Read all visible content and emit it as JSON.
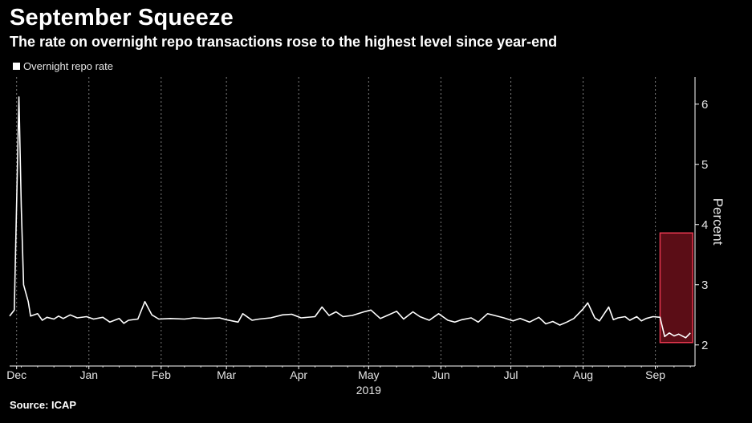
{
  "header": {
    "title": "September Squeeze",
    "subtitle": "The rate on overnight repo transactions rose to the highest level since year-end"
  },
  "source": "Source: ICAP",
  "colors": {
    "background": "#000000",
    "line": "#ffffff",
    "highlight_fill": "#6b0f1a",
    "highlight_stroke": "#e8384f",
    "grid": "#7a7a7a"
  },
  "chart_data": {
    "type": "line",
    "title": "September Squeeze",
    "subtitle": "The rate on overnight repo transactions rose to the highest level since year-end",
    "ylabel": "Percent",
    "year_label": "2019",
    "x_range": [
      "2018-11-28",
      "2019-09-18"
    ],
    "ylim": [
      1.65,
      6.45
    ],
    "y_ticks": [
      2,
      3,
      4,
      5,
      6
    ],
    "y_axis_side": "right",
    "grid": "vertical dashed at month starts",
    "legend_position": "top-left",
    "months": [
      {
        "label": "Dec",
        "date": "2018-12-01"
      },
      {
        "label": "Jan",
        "date": "2019-01-01"
      },
      {
        "label": "Feb",
        "date": "2019-02-01"
      },
      {
        "label": "Mar",
        "date": "2019-03-01"
      },
      {
        "label": "Apr",
        "date": "2019-04-01"
      },
      {
        "label": "May",
        "date": "2019-05-01"
      },
      {
        "label": "Jun",
        "date": "2019-06-01"
      },
      {
        "label": "Jul",
        "date": "2019-07-01"
      },
      {
        "label": "Aug",
        "date": "2019-08-01"
      },
      {
        "label": "Sep",
        "date": "2019-09-01"
      }
    ],
    "highlight": {
      "x_start": "2019-09-03",
      "x_end": "2019-09-17",
      "y_start": 2.04,
      "y_end": 3.86
    },
    "series": [
      {
        "name": "Overnight repo rate",
        "points": [
          [
            "2018-11-28",
            2.48
          ],
          [
            "2018-11-30",
            2.58
          ],
          [
            "2018-12-02",
            6.12
          ],
          [
            "2018-12-03",
            4.3
          ],
          [
            "2018-12-04",
            3.0
          ],
          [
            "2018-12-06",
            2.72
          ],
          [
            "2018-12-07",
            2.48
          ],
          [
            "2018-12-10",
            2.52
          ],
          [
            "2018-12-12",
            2.41
          ],
          [
            "2018-12-14",
            2.46
          ],
          [
            "2018-12-17",
            2.43
          ],
          [
            "2018-12-19",
            2.48
          ],
          [
            "2018-12-21",
            2.44
          ],
          [
            "2018-12-24",
            2.5
          ],
          [
            "2018-12-27",
            2.45
          ],
          [
            "2018-12-31",
            2.47
          ],
          [
            "2019-01-03",
            2.43
          ],
          [
            "2019-01-07",
            2.46
          ],
          [
            "2019-01-10",
            2.38
          ],
          [
            "2019-01-14",
            2.44
          ],
          [
            "2019-01-16",
            2.36
          ],
          [
            "2019-01-18",
            2.41
          ],
          [
            "2019-01-22",
            2.43
          ],
          [
            "2019-01-25",
            2.72
          ],
          [
            "2019-01-28",
            2.5
          ],
          [
            "2019-01-31",
            2.43
          ],
          [
            "2019-02-05",
            2.44
          ],
          [
            "2019-02-11",
            2.43
          ],
          [
            "2019-02-15",
            2.45
          ],
          [
            "2019-02-20",
            2.44
          ],
          [
            "2019-02-26",
            2.45
          ],
          [
            "2019-03-01",
            2.42
          ],
          [
            "2019-03-06",
            2.38
          ],
          [
            "2019-03-08",
            2.52
          ],
          [
            "2019-03-12",
            2.41
          ],
          [
            "2019-03-15",
            2.43
          ],
          [
            "2019-03-20",
            2.45
          ],
          [
            "2019-03-25",
            2.5
          ],
          [
            "2019-03-29",
            2.51
          ],
          [
            "2019-04-02",
            2.45
          ],
          [
            "2019-04-08",
            2.47
          ],
          [
            "2019-04-11",
            2.63
          ],
          [
            "2019-04-14",
            2.49
          ],
          [
            "2019-04-17",
            2.55
          ],
          [
            "2019-04-20",
            2.47
          ],
          [
            "2019-04-24",
            2.49
          ],
          [
            "2019-04-29",
            2.55
          ],
          [
            "2019-05-02",
            2.58
          ],
          [
            "2019-05-06",
            2.44
          ],
          [
            "2019-05-09",
            2.49
          ],
          [
            "2019-05-13",
            2.56
          ],
          [
            "2019-05-16",
            2.43
          ],
          [
            "2019-05-20",
            2.55
          ],
          [
            "2019-05-23",
            2.47
          ],
          [
            "2019-05-27",
            2.41
          ],
          [
            "2019-05-31",
            2.52
          ],
          [
            "2019-06-04",
            2.41
          ],
          [
            "2019-06-07",
            2.38
          ],
          [
            "2019-06-10",
            2.42
          ],
          [
            "2019-06-14",
            2.45
          ],
          [
            "2019-06-17",
            2.38
          ],
          [
            "2019-06-21",
            2.52
          ],
          [
            "2019-06-24",
            2.49
          ],
          [
            "2019-06-28",
            2.45
          ],
          [
            "2019-07-02",
            2.4
          ],
          [
            "2019-07-05",
            2.44
          ],
          [
            "2019-07-09",
            2.38
          ],
          [
            "2019-07-13",
            2.46
          ],
          [
            "2019-07-16",
            2.35
          ],
          [
            "2019-07-19",
            2.39
          ],
          [
            "2019-07-22",
            2.33
          ],
          [
            "2019-07-25",
            2.38
          ],
          [
            "2019-07-28",
            2.44
          ],
          [
            "2019-08-01",
            2.6
          ],
          [
            "2019-08-03",
            2.7
          ],
          [
            "2019-08-06",
            2.45
          ],
          [
            "2019-08-08",
            2.4
          ],
          [
            "2019-08-12",
            2.63
          ],
          [
            "2019-08-14",
            2.42
          ],
          [
            "2019-08-16",
            2.45
          ],
          [
            "2019-08-19",
            2.47
          ],
          [
            "2019-08-21",
            2.41
          ],
          [
            "2019-08-24",
            2.47
          ],
          [
            "2019-08-26",
            2.4
          ],
          [
            "2019-08-28",
            2.44
          ],
          [
            "2019-08-31",
            2.47
          ],
          [
            "2019-09-03",
            2.46
          ],
          [
            "2019-09-05",
            2.14
          ],
          [
            "2019-09-07",
            2.2
          ],
          [
            "2019-09-09",
            2.15
          ],
          [
            "2019-09-11",
            2.18
          ],
          [
            "2019-09-14",
            2.12
          ],
          [
            "2019-09-16",
            2.2
          ]
        ]
      }
    ]
  }
}
